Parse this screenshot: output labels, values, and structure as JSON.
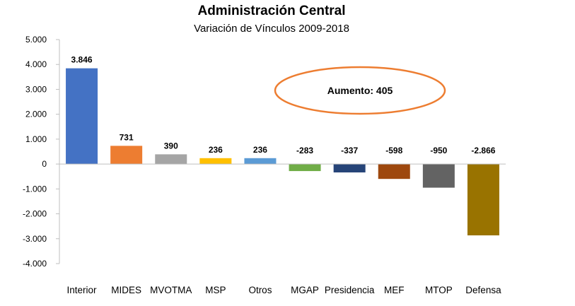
{
  "chart_data": {
    "type": "bar",
    "title": "Administración Central",
    "subtitle": "Variación de Vínculos 2009-2018",
    "xlabel": "",
    "ylabel": "",
    "categories": [
      "Interior",
      "MIDES",
      "MVOTMA",
      "MSP",
      "Otros",
      "MGAP",
      "Presidencia",
      "MEF",
      "MTOP",
      "Defensa"
    ],
    "values": [
      3846,
      731,
      390,
      236,
      236,
      -283,
      -337,
      -598,
      -950,
      -2866
    ],
    "value_labels": [
      "3.846",
      "731",
      "390",
      "236",
      "236",
      "-283",
      "-337",
      "-598",
      "-950",
      "-2.866"
    ],
    "colors": [
      "#4472C4",
      "#ED7D31",
      "#A5A5A5",
      "#FFC000",
      "#5B9BD5",
      "#70AD47",
      "#264478",
      "#9E480E",
      "#636363",
      "#997300"
    ],
    "ylim": [
      -4000,
      5000
    ],
    "yticks": [
      5000,
      4000,
      3000,
      2000,
      1000,
      0,
      -1000,
      -2000,
      -3000,
      -4000
    ],
    "ytick_labels": [
      "5.000",
      "4.000",
      "3.000",
      "2.000",
      "1.000",
      "0",
      "-1.000",
      "-2.000",
      "-3.000",
      "-4.000"
    ],
    "annotation": {
      "text": "Aumento: 405",
      "shape": "ellipse",
      "color": "#ED7D31",
      "placement": "upper-right"
    },
    "grid": false,
    "legend": "none"
  }
}
